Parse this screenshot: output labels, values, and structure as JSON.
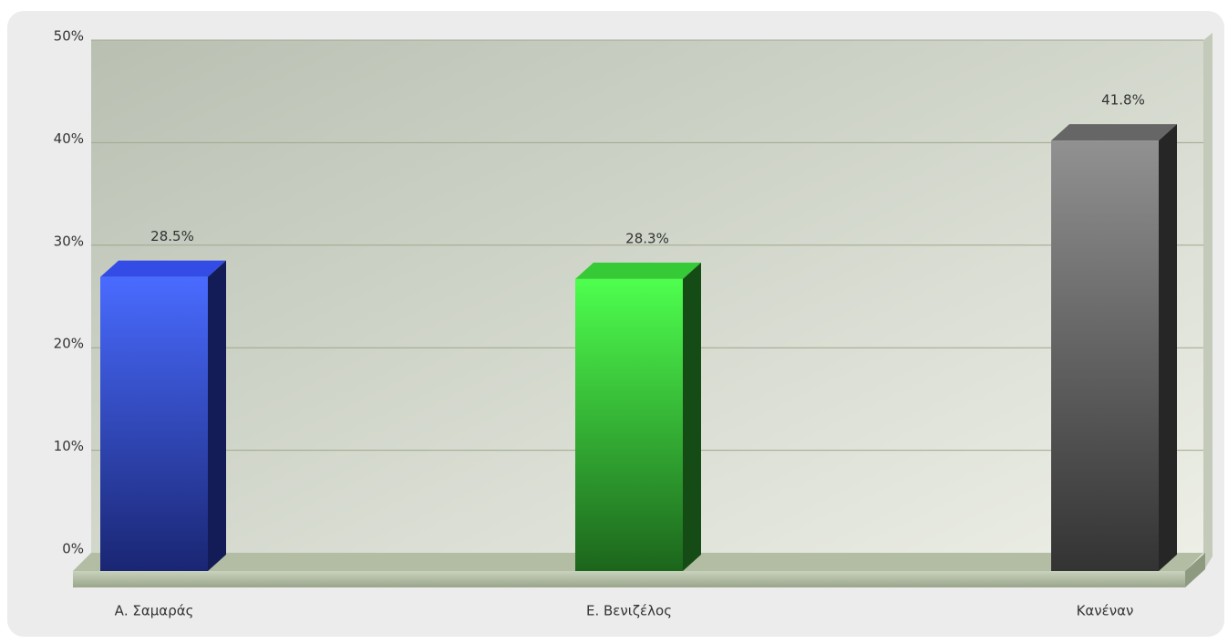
{
  "chart_data": {
    "type": "bar3d",
    "categories": [
      "Α. Σαμαράς",
      "Ε. Βενιζέλος",
      "Κανέναν"
    ],
    "values": [
      28.5,
      28.3,
      41.8
    ],
    "value_labels": [
      "28.5%",
      "28.3%",
      "41.8%"
    ],
    "colors": [
      "#2b3fc0",
      "#2ea82e",
      "#555555"
    ],
    "ylim": [
      0,
      50
    ],
    "yticks": [
      {
        "value": 0,
        "label": "0%"
      },
      {
        "value": 10,
        "label": "10%"
      },
      {
        "value": 20,
        "label": "20%"
      },
      {
        "value": 30,
        "label": "30%"
      },
      {
        "value": 40,
        "label": "40%"
      },
      {
        "value": 50,
        "label": "50%"
      }
    ],
    "grid": true
  }
}
